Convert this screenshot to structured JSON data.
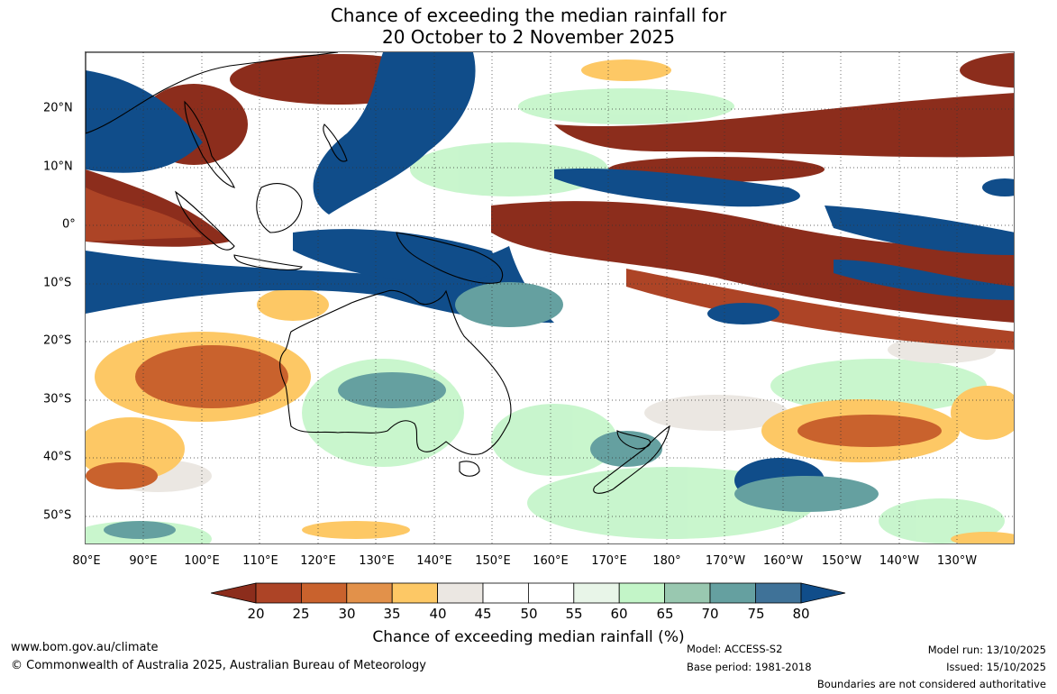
{
  "title": {
    "line1": "Chance of exceeding the median rainfall for",
    "line2": "20 October to 2 November 2025"
  },
  "axes": {
    "lat_labels": [
      "20°N",
      "10°N",
      "0°",
      "10°S",
      "20°S",
      "30°S",
      "40°S",
      "50°S"
    ],
    "lon_labels": [
      "80°E",
      "90°E",
      "100°E",
      "110°E",
      "120°E",
      "130°E",
      "140°E",
      "150°E",
      "160°E",
      "170°E",
      "180°",
      "170°W",
      "160°W",
      "150°W",
      "140°W",
      "130°W"
    ]
  },
  "legend": {
    "title": "Chance of exceeding median rainfall (%)",
    "ticks": [
      "20",
      "25",
      "30",
      "35",
      "40",
      "45",
      "50",
      "55",
      "60",
      "65",
      "70",
      "75",
      "80"
    ],
    "colors": [
      "#8c2d1c",
      "#ad4426",
      "#c9622d",
      "#e2914a",
      "#fdc865",
      "#ebe7e2",
      "#ffffff",
      "#ffffff",
      "#e8f5e8",
      "#c3f5c8",
      "#99c8b0",
      "#65a0a0",
      "#3f7298",
      "#104d8a"
    ]
  },
  "map_colors": {
    "ocean_base": "#ffffff",
    "wet_strong": "#104d8a",
    "wet_mid": "#3f7298",
    "wet_light": "#65a0a0",
    "green": "#c3f5c8",
    "dry_strong": "#8c2d1c",
    "dry_mid": "#ad4426",
    "dry_light": "#e2914a",
    "yellow": "#fdc865",
    "grey": "#ebe7e2"
  },
  "footer": {
    "website": "www.bom.gov.au/climate",
    "copyright": "© Commonwealth of Australia 2025, Australian Bureau of Meteorology",
    "model": "Model: ACCESS-S2",
    "base_period": "Base period: 1981-2018",
    "model_run": "Model run: 13/10/2025",
    "issued": "Issued: 15/10/2025",
    "boundaries": "Boundaries are not considered authoritative"
  }
}
